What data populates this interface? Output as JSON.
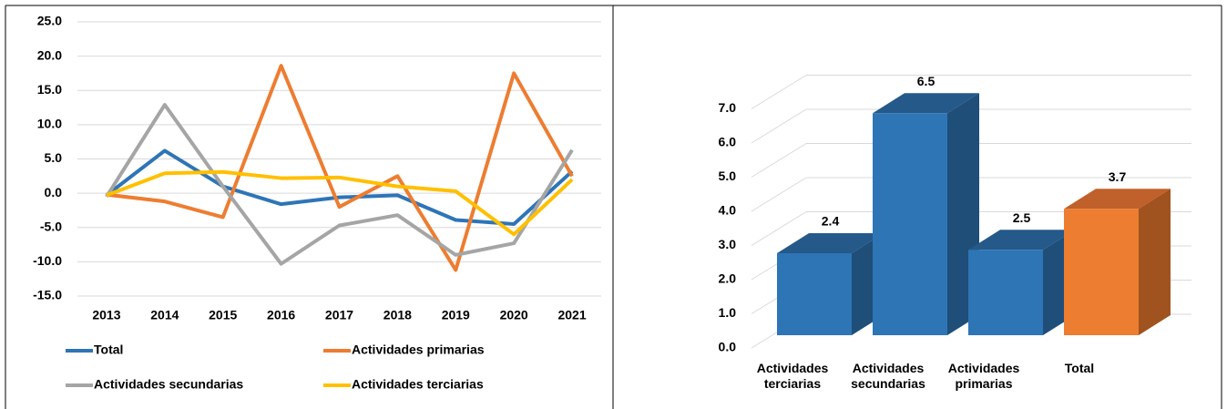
{
  "chart_data": [
    {
      "type": "line",
      "categories": [
        "2013",
        "2014",
        "2015",
        "2016",
        "2017",
        "2018",
        "2019",
        "2020",
        "2021"
      ],
      "series": [
        {
          "name": "Total",
          "color": "#2e75b6",
          "values": [
            -0.3,
            6.2,
            1.0,
            -1.6,
            -0.6,
            -0.3,
            -3.9,
            -4.5,
            3.2
          ]
        },
        {
          "name": "Actividades primarias",
          "color": "#ed7d31",
          "values": [
            -0.2,
            -1.2,
            -3.5,
            18.6,
            -2.0,
            2.5,
            -11.2,
            17.5,
            2.5
          ]
        },
        {
          "name": "Actividades secundarias",
          "color": "#a5a5a5",
          "values": [
            -0.5,
            12.9,
            1.0,
            -10.3,
            -4.7,
            -3.2,
            -9.0,
            -7.3,
            6.3
          ]
        },
        {
          "name": "Actividades terciarias",
          "color": "#ffc000",
          "values": [
            -0.3,
            2.9,
            3.1,
            2.2,
            2.3,
            1.0,
            0.3,
            -6.0,
            2.0
          ]
        }
      ],
      "ylim": [
        -15,
        25
      ],
      "yticks": [
        {
          "value": -15,
          "label": "-15.0"
        },
        {
          "value": -10,
          "label": "-10.0"
        },
        {
          "value": -5,
          "label": "-5.0"
        },
        {
          "value": 0,
          "label": "0.0"
        },
        {
          "value": 5,
          "label": "5.0"
        },
        {
          "value": 10,
          "label": "10.0"
        },
        {
          "value": 15,
          "label": "15.0"
        },
        {
          "value": 20,
          "label": "20.0"
        },
        {
          "value": 25,
          "label": "25.0"
        }
      ],
      "grid": true,
      "legend": "bottom"
    },
    {
      "type": "bar3d",
      "categories": [
        "Actividades terciarias",
        "Actividades secundarias",
        "Actividades primarias",
        "Total"
      ],
      "values": [
        2.4,
        6.5,
        2.5,
        3.7
      ],
      "colors": [
        "#2e75b6",
        "#2e75b6",
        "#2e75b6",
        "#ed7d31"
      ],
      "ylim": [
        0,
        7
      ],
      "yticks": [
        {
          "value": 0,
          "label": "0.0"
        },
        {
          "value": 1,
          "label": "1.0"
        },
        {
          "value": 2,
          "label": "2.0"
        },
        {
          "value": 3,
          "label": "3.0"
        },
        {
          "value": 4,
          "label": "4.0"
        },
        {
          "value": 5,
          "label": "5.0"
        },
        {
          "value": 6,
          "label": "6.0"
        },
        {
          "value": 7,
          "label": "7.0"
        }
      ],
      "grid": true
    }
  ]
}
